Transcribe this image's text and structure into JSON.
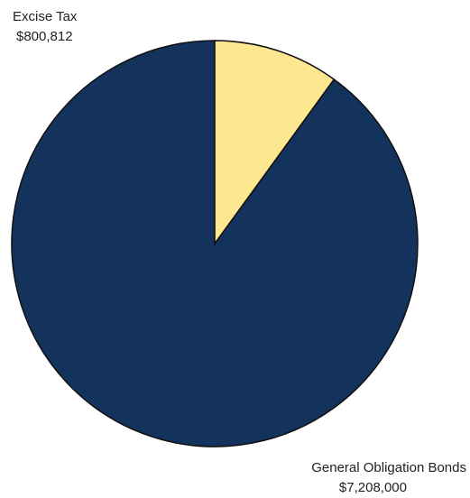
{
  "chart_data": {
    "type": "pie",
    "start_angle_deg": 0,
    "direction": "counterclockwise",
    "slices": [
      {
        "name": "General Obligation Bonds",
        "value": 7208000,
        "value_label": "$7,208,000",
        "color": "#13335d"
      },
      {
        "name": "Excise Tax",
        "value": 800812,
        "value_label": "$800,812",
        "color": "#fde891"
      }
    ],
    "legend": "none"
  }
}
